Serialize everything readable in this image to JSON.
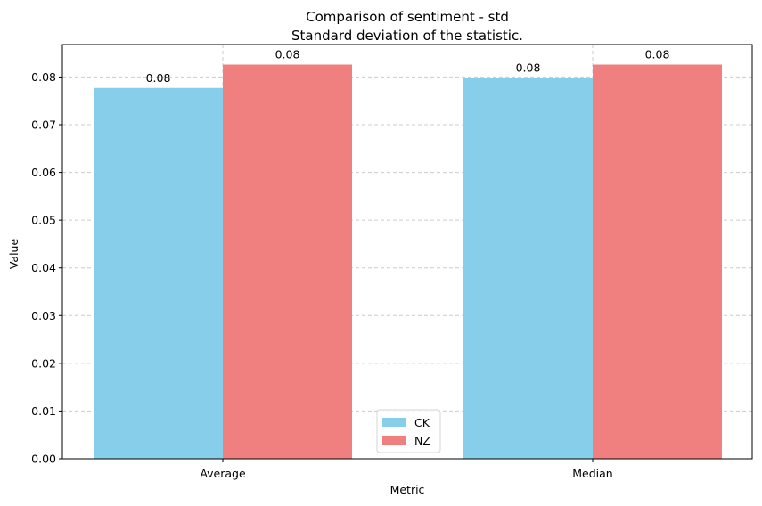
{
  "chart_data": {
    "type": "bar",
    "title": "Comparison of sentiment - std",
    "subtitle": "Standard deviation of the statistic.",
    "xlabel": "Metric",
    "ylabel": "Value",
    "categories": [
      "Average",
      "Median"
    ],
    "series": [
      {
        "name": "CK",
        "values": [
          0.0777,
          0.0798
        ],
        "labels": [
          "0.08",
          "0.08"
        ],
        "color": "#87ceeb"
      },
      {
        "name": "NZ",
        "values": [
          0.0826,
          0.0826
        ],
        "labels": [
          "0.08",
          "0.08"
        ],
        "color": "#f08080"
      }
    ],
    "ylim": [
      0,
      0.0868
    ],
    "yticks": [
      0.0,
      0.01,
      0.02,
      0.03,
      0.04,
      0.05,
      0.06,
      0.07,
      0.08
    ],
    "ytick_labels": [
      "0.00",
      "0.01",
      "0.02",
      "0.03",
      "0.04",
      "0.05",
      "0.06",
      "0.07",
      "0.08"
    ],
    "grid": true,
    "legend_position": "bottom-center"
  }
}
